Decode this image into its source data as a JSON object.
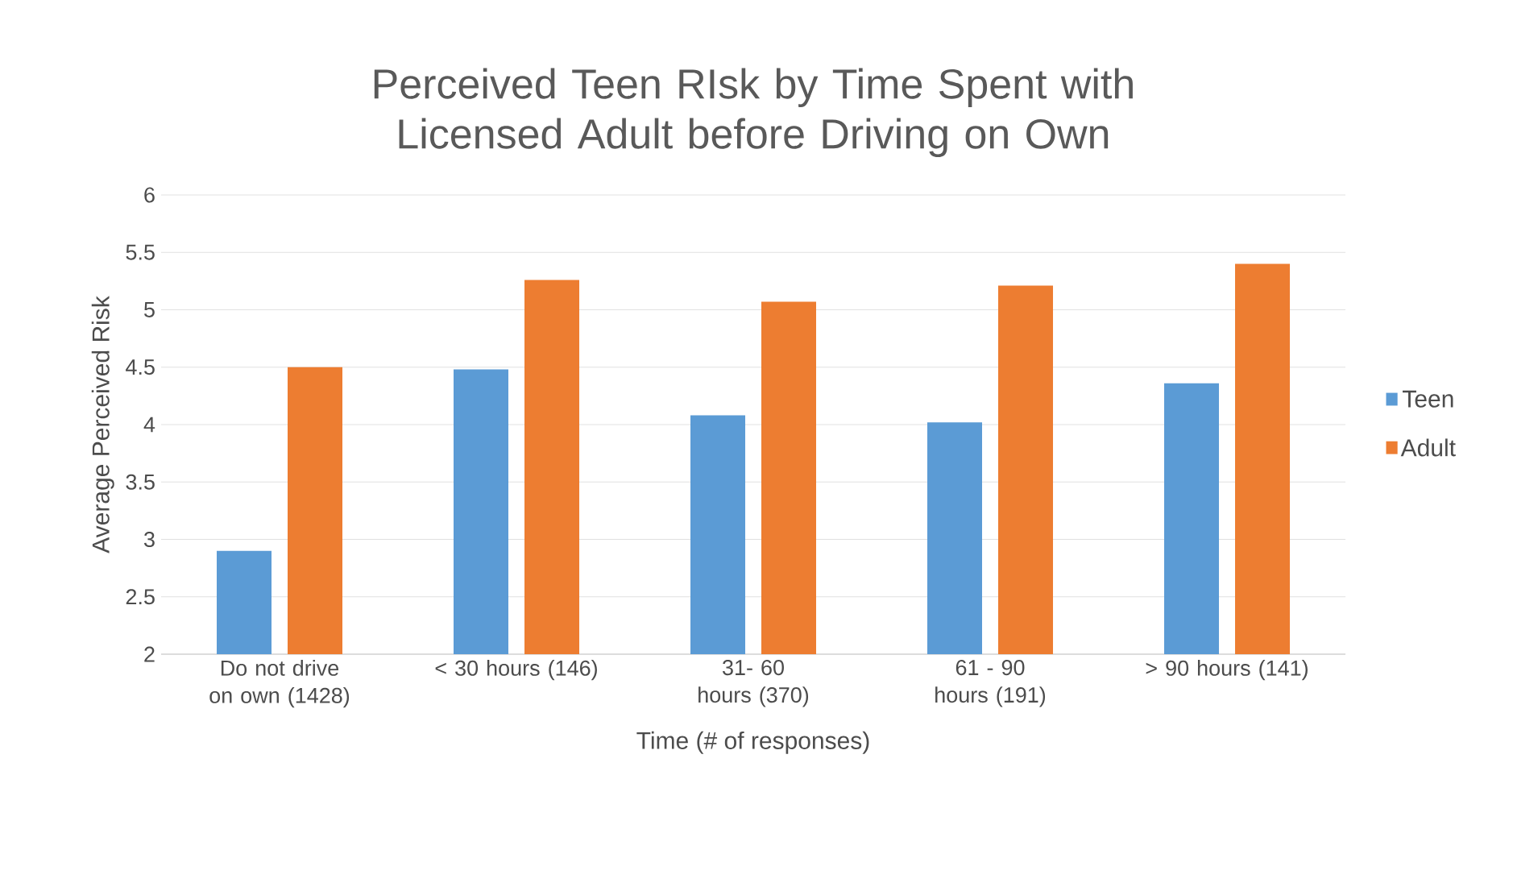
{
  "chart_data": {
    "type": "bar",
    "title": "Perceived Teen RIsk by Time Spent with Licensed Adult before Driving on Own",
    "xlabel": "Time (# of responses)",
    "ylabel": "Average Perceived Risk",
    "categories": [
      "Do not drive on own (1428)",
      "< 30 hours (146)",
      "31- 60 hours (370)",
      "61 - 90 hours (191)",
      "> 90 hours (141)"
    ],
    "series": [
      {
        "name": "Teen",
        "color": "#5b9bd5",
        "values": [
          2.9,
          4.48,
          4.08,
          4.02,
          4.36
        ]
      },
      {
        "name": "Adult",
        "color": "#ed7d31",
        "values": [
          4.5,
          5.26,
          5.07,
          5.21,
          5.4
        ]
      }
    ],
    "ylim": [
      2,
      6
    ],
    "yticks": [
      2,
      2.5,
      3,
      3.5,
      4,
      4.5,
      5,
      5.5,
      6
    ],
    "grid": "y",
    "legend": "right"
  }
}
